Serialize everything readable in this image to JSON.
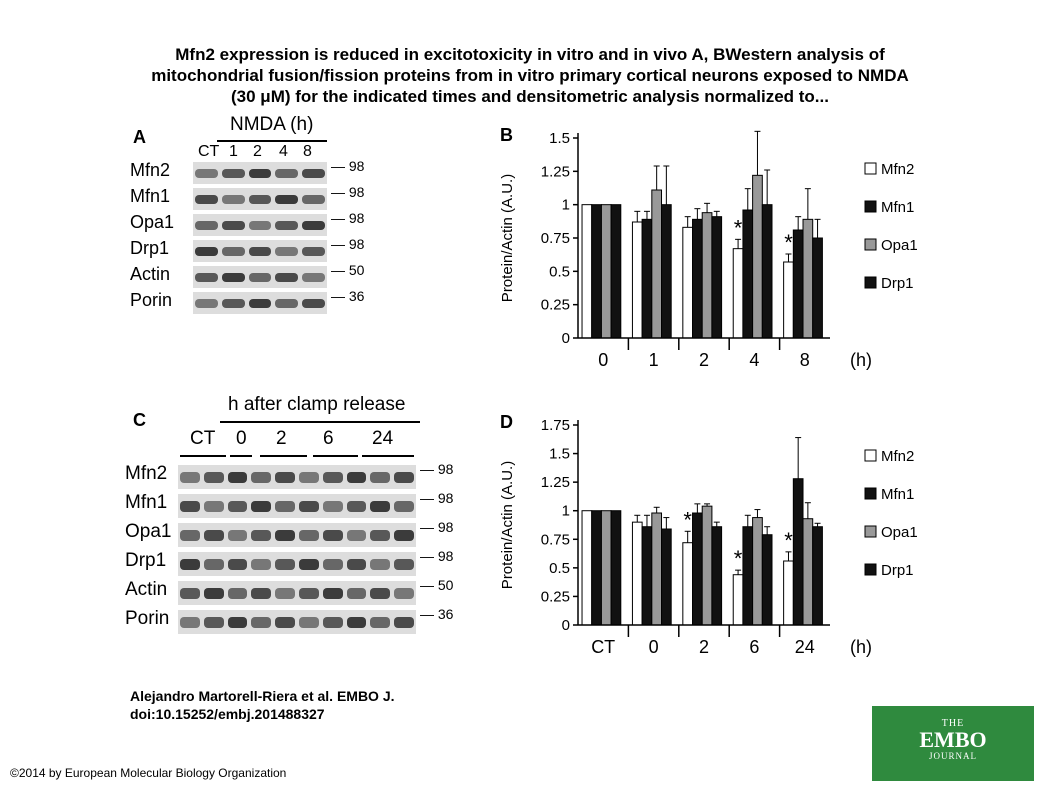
{
  "title_lines": [
    "Mfn2 expression is reduced in excitotoxicity in vitro and in vivo A, BWestern analysis of",
    "mitochondrial fusion/fission proteins from in vitro primary cortical neurons exposed to NMDA",
    "(30 μM) for the indicated times and densitometric analysis normalized to..."
  ],
  "panel_a": {
    "letter": "A",
    "header": "NMDA (h)",
    "lanes": [
      "CT",
      "1",
      "2",
      "4",
      "8"
    ],
    "rows": [
      {
        "label": "Mfn2",
        "mw": "98"
      },
      {
        "label": "Mfn1",
        "mw": "98"
      },
      {
        "label": "Opa1",
        "mw": "98"
      },
      {
        "label": "Drp1",
        "mw": "98"
      },
      {
        "label": "Actin",
        "mw": "50"
      },
      {
        "label": "Porin",
        "mw": "36"
      }
    ]
  },
  "panel_c": {
    "letter": "C",
    "header": "h after clamp release",
    "lanes": [
      "CT",
      "0",
      "2",
      "6",
      "24"
    ],
    "rows": [
      {
        "label": "Mfn2",
        "mw": "98"
      },
      {
        "label": "Mfn1",
        "mw": "98"
      },
      {
        "label": "Opa1",
        "mw": "98"
      },
      {
        "label": "Drp1",
        "mw": "98"
      },
      {
        "label": "Actin",
        "mw": "50"
      },
      {
        "label": "Porin",
        "mw": "36"
      }
    ]
  },
  "chart_data": [
    {
      "panel": "B",
      "type": "bar",
      "ylabel": "Protein/Actin (A.U.)",
      "xlabel": "(h)",
      "categories": [
        "0",
        "1",
        "2",
        "4",
        "8"
      ],
      "ylim": [
        0,
        1.5
      ],
      "yticks": [
        "0",
        "0.25",
        "0.5",
        "0.75",
        "1",
        "1.25",
        "1.5"
      ],
      "legend_position": "right",
      "series": [
        {
          "name": "Mfn2",
          "color": "#ffffff",
          "values": [
            1,
            0.87,
            0.83,
            0.67,
            0.57
          ],
          "errors": [
            0,
            0.08,
            0.08,
            0.07,
            0.06
          ]
        },
        {
          "name": "Mfn1",
          "color": "#111111",
          "values": [
            1,
            0.89,
            0.89,
            0.96,
            0.81
          ],
          "errors": [
            0,
            0.06,
            0.08,
            0.16,
            0.1
          ]
        },
        {
          "name": "Opa1",
          "color": "#999999",
          "values": [
            1,
            1.11,
            0.94,
            1.22,
            0.89
          ],
          "errors": [
            0,
            0.18,
            0.07,
            0.33,
            0.23
          ]
        },
        {
          "name": "Drp1",
          "color": "#111111",
          "values": [
            1,
            1.0,
            0.91,
            1.0,
            0.75
          ],
          "errors": [
            0,
            0.29,
            0.04,
            0.26,
            0.14
          ]
        }
      ],
      "annotations": [
        {
          "text": "*",
          "category": "4"
        },
        {
          "text": "*",
          "category": "8"
        }
      ]
    },
    {
      "panel": "D",
      "type": "bar",
      "ylabel": "Protein/Actin (A.U.)",
      "xlabel": "(h)",
      "categories": [
        "CT",
        "0",
        "2",
        "6",
        "24"
      ],
      "ylim": [
        0,
        1.75
      ],
      "yticks": [
        "0",
        "0.25",
        "0.5",
        "0.75",
        "1",
        "1.25",
        "1.5",
        "1.75"
      ],
      "legend_position": "right",
      "series": [
        {
          "name": "Mfn2",
          "color": "#ffffff",
          "values": [
            1,
            0.9,
            0.72,
            0.44,
            0.56
          ],
          "errors": [
            0,
            0.06,
            0.1,
            0.04,
            0.08
          ]
        },
        {
          "name": "Mfn1",
          "color": "#111111",
          "values": [
            1,
            0.86,
            0.98,
            0.86,
            1.28
          ],
          "errors": [
            0,
            0.1,
            0.08,
            0.1,
            0.36
          ]
        },
        {
          "name": "Opa1",
          "color": "#999999",
          "values": [
            1,
            0.98,
            1.04,
            0.94,
            0.93
          ],
          "errors": [
            0,
            0.05,
            0.02,
            0.07,
            0.14
          ]
        },
        {
          "name": "Drp1",
          "color": "#111111",
          "values": [
            1,
            0.84,
            0.86,
            0.79,
            0.86
          ],
          "errors": [
            0,
            0.1,
            0.04,
            0.07,
            0.03
          ]
        }
      ],
      "annotations": [
        {
          "text": "*",
          "category": "2"
        },
        {
          "text": "*",
          "category": "6"
        },
        {
          "text": "*",
          "category": "24"
        }
      ]
    }
  ],
  "citation_lines": [
    "Alejandro Martorell-Riera et al. EMBO J.",
    "doi:10.15252/embj.201488327"
  ],
  "copyright": "©2014 by European Molecular Biology Organization",
  "logo": {
    "line1": "THE",
    "line2": "EMBO",
    "line3": "JOURNAL",
    "color": "#2f8a3e"
  }
}
